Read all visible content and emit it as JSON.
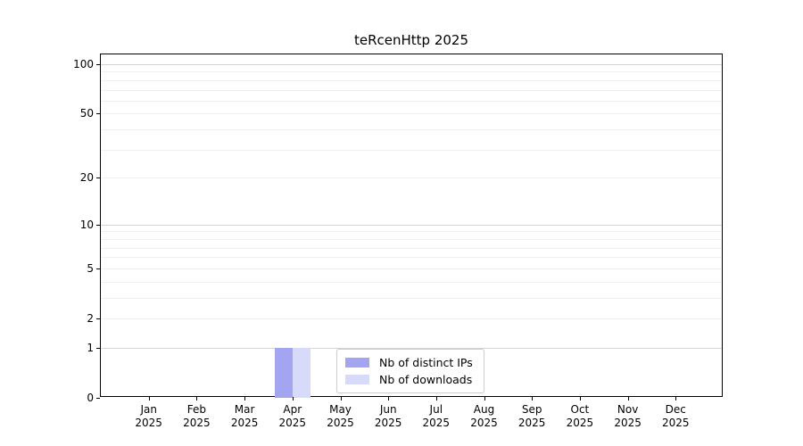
{
  "chart_data": {
    "type": "bar",
    "title": "teRcenHttp 2025",
    "categories": [
      "Jan 2025",
      "Feb 2025",
      "Mar 2025",
      "Apr 2025",
      "May 2025",
      "Jun 2025",
      "Jul 2025",
      "Aug 2025",
      "Sep 2025",
      "Oct 2025",
      "Nov 2025",
      "Dec 2025"
    ],
    "series": [
      {
        "name": "Nb of distinct IPs",
        "color": "#a3a5f1",
        "values": [
          0,
          0,
          0,
          1,
          0,
          0,
          0,
          0,
          0,
          0,
          0,
          0
        ]
      },
      {
        "name": "Nb of downloads",
        "color": "#d7daf9",
        "values": [
          0,
          0,
          0,
          1,
          0,
          0,
          0,
          0,
          0,
          0,
          0,
          0
        ]
      }
    ],
    "xlabel": "",
    "ylabel": "",
    "y_axis": {
      "scale": "log1p",
      "ticks": [
        0,
        1,
        2,
        5,
        10,
        20,
        50,
        100
      ],
      "major_gridlines": [
        1,
        10,
        100
      ],
      "minor_gridlines": [
        2,
        3,
        4,
        5,
        6,
        7,
        8,
        9,
        20,
        30,
        40,
        50,
        60,
        70,
        80,
        90
      ],
      "ylim": [
        0,
        114
      ]
    },
    "grid": true,
    "legend": {
      "position": "lower center",
      "entries": [
        "Nb of distinct IPs",
        "Nb of downloads"
      ]
    }
  },
  "colors": {
    "background": "#ffffff",
    "spine": "#000000",
    "text": "#000000",
    "major_grid": "#d4d4d4",
    "minor_grid": "#f0f0f0",
    "legend_border": "#cccccc"
  }
}
